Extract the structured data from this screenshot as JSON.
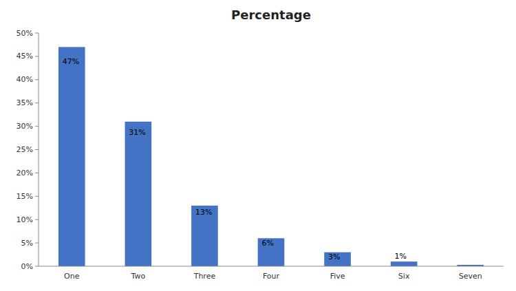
{
  "chart_data": {
    "type": "bar",
    "title": "Percentage",
    "categories": [
      "One",
      "Two",
      "Three",
      "Four",
      "Five",
      "Six",
      "Seven"
    ],
    "values": [
      47,
      31,
      13,
      6,
      3,
      1,
      0.3
    ],
    "data_labels": true,
    "value_labels": [
      "47%",
      "31%",
      "13%",
      "6%",
      "3%",
      "1%",
      null
    ],
    "color": "#4472C4",
    "ylim": [
      0,
      50
    ],
    "yticks": [
      {
        "value": 0,
        "label": "0%"
      },
      {
        "value": 5,
        "label": "5%"
      },
      {
        "value": 10,
        "label": "10%"
      },
      {
        "value": 15,
        "label": "15%"
      },
      {
        "value": 20,
        "label": "20%"
      },
      {
        "value": 25,
        "label": "25%"
      },
      {
        "value": 30,
        "label": "30%"
      },
      {
        "value": 35,
        "label": "35%"
      },
      {
        "value": 40,
        "label": "40%"
      },
      {
        "value": 45,
        "label": "45%"
      },
      {
        "value": 50,
        "label": "50%"
      }
    ],
    "grid": false
  }
}
